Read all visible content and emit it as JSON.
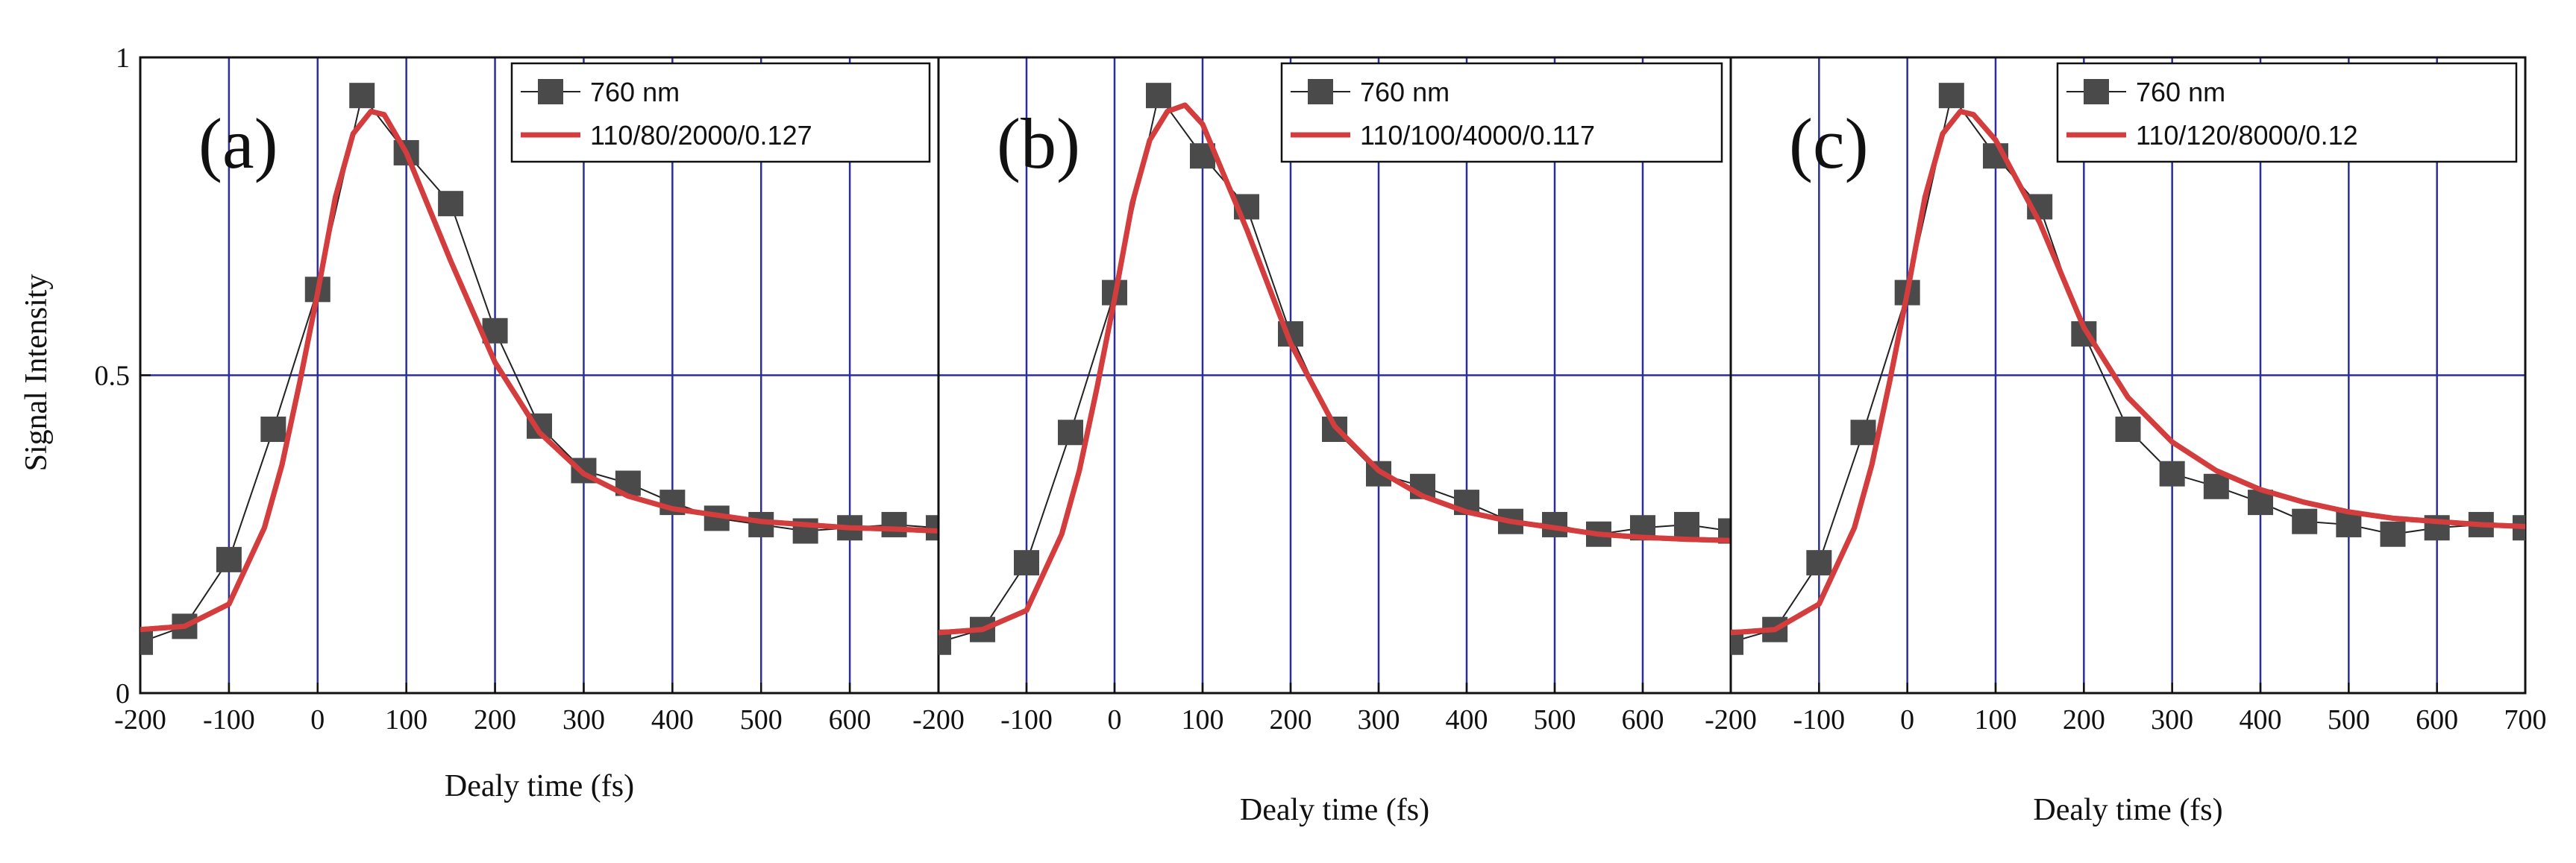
{
  "figure": {
    "ylabel": "Signal Intensity",
    "xlabel": "Dealy time (fs)"
  },
  "chart_data": [
    {
      "type": "line",
      "panel_label": "(a)",
      "xlabel": "Dealy time (fs)",
      "ylabel": "Signal Intensity",
      "xlim": [
        -200,
        700
      ],
      "ylim": [
        0,
        1
      ],
      "x_ticks": [
        -200,
        -100,
        0,
        100,
        200,
        300,
        400,
        500,
        600
      ],
      "y_ticks": [
        0,
        0.5,
        1
      ],
      "y_tick_labels": [
        "0",
        "0.5",
        "1"
      ],
      "grid": "vertical lines every 100 fs, horizontal line at 0.5",
      "legend": "top-right",
      "series": [
        {
          "name": "760 nm",
          "style": "squares-with-line",
          "color": "#4a4a4a",
          "x": [
            -200,
            -150,
            -100,
            -50,
            0,
            50,
            100,
            150,
            200,
            250,
            300,
            350,
            400,
            450,
            500,
            550,
            600,
            650,
            700
          ],
          "values": [
            0.08,
            0.105,
            0.21,
            0.415,
            0.635,
            0.94,
            0.85,
            0.77,
            0.57,
            0.42,
            0.35,
            0.33,
            0.3,
            0.275,
            0.265,
            0.255,
            0.26,
            0.265,
            0.26
          ]
        },
        {
          "name": "110/80/2000/0.127",
          "style": "line",
          "color": "#d43d3d",
          "x": [
            -200,
            -150,
            -100,
            -60,
            -40,
            -20,
            0,
            20,
            40,
            60,
            75,
            100,
            150,
            200,
            250,
            300,
            350,
            400,
            450,
            500,
            550,
            600,
            650,
            700
          ],
          "values": [
            0.1,
            0.105,
            0.14,
            0.26,
            0.36,
            0.49,
            0.63,
            0.78,
            0.88,
            0.915,
            0.91,
            0.85,
            0.68,
            0.52,
            0.41,
            0.345,
            0.31,
            0.29,
            0.28,
            0.27,
            0.265,
            0.26,
            0.258,
            0.255
          ]
        }
      ]
    },
    {
      "type": "line",
      "panel_label": "(b)",
      "xlabel": "Dealy time (fs)",
      "ylabel": "",
      "xlim": [
        -200,
        700
      ],
      "ylim": [
        0,
        1
      ],
      "x_ticks": [
        -200,
        -100,
        0,
        100,
        200,
        300,
        400,
        500,
        600
      ],
      "grid": "vertical lines every 100 fs, horizontal line at 0.5",
      "legend": "top-right",
      "series": [
        {
          "name": "760 nm",
          "style": "squares-with-line",
          "color": "#4a4a4a",
          "x": [
            -200,
            -150,
            -100,
            -50,
            0,
            50,
            100,
            150,
            200,
            250,
            300,
            350,
            400,
            450,
            500,
            550,
            600,
            650,
            700
          ],
          "values": [
            0.08,
            0.1,
            0.205,
            0.41,
            0.63,
            0.94,
            0.845,
            0.765,
            0.565,
            0.415,
            0.345,
            0.325,
            0.3,
            0.27,
            0.265,
            0.25,
            0.26,
            0.265,
            0.255
          ]
        },
        {
          "name": "110/100/4000/0.117",
          "style": "line",
          "color": "#d43d3d",
          "x": [
            -200,
            -150,
            -100,
            -60,
            -40,
            -20,
            0,
            20,
            40,
            60,
            80,
            100,
            150,
            200,
            250,
            300,
            350,
            400,
            450,
            500,
            550,
            600,
            650,
            700
          ],
          "values": [
            0.095,
            0.1,
            0.13,
            0.25,
            0.35,
            0.48,
            0.62,
            0.77,
            0.87,
            0.915,
            0.925,
            0.895,
            0.73,
            0.55,
            0.42,
            0.35,
            0.31,
            0.285,
            0.27,
            0.26,
            0.25,
            0.245,
            0.242,
            0.24
          ]
        }
      ]
    },
    {
      "type": "line",
      "panel_label": "(c)",
      "xlabel": "Dealy time (fs)",
      "ylabel": "",
      "xlim": [
        -200,
        700
      ],
      "ylim": [
        0,
        1
      ],
      "x_ticks": [
        -200,
        -100,
        0,
        100,
        200,
        300,
        400,
        500,
        600,
        700
      ],
      "grid": "vertical lines every 100 fs, horizontal line at 0.5",
      "legend": "top-right",
      "series": [
        {
          "name": "760 nm",
          "style": "squares-with-line",
          "color": "#4a4a4a",
          "x": [
            -200,
            -150,
            -100,
            -50,
            0,
            50,
            100,
            150,
            200,
            250,
            300,
            350,
            400,
            450,
            500,
            550,
            600,
            650,
            700
          ],
          "values": [
            0.08,
            0.1,
            0.205,
            0.41,
            0.63,
            0.94,
            0.845,
            0.765,
            0.565,
            0.415,
            0.345,
            0.325,
            0.3,
            0.27,
            0.265,
            0.25,
            0.26,
            0.265,
            0.26
          ]
        },
        {
          "name": "110/120/8000/0.12",
          "style": "line",
          "color": "#d43d3d",
          "x": [
            -200,
            -150,
            -100,
            -60,
            -40,
            -20,
            0,
            20,
            40,
            60,
            75,
            100,
            150,
            200,
            250,
            300,
            350,
            400,
            450,
            500,
            550,
            600,
            650,
            700
          ],
          "values": [
            0.095,
            0.1,
            0.14,
            0.26,
            0.36,
            0.49,
            0.63,
            0.78,
            0.88,
            0.915,
            0.91,
            0.87,
            0.74,
            0.575,
            0.465,
            0.395,
            0.35,
            0.32,
            0.3,
            0.285,
            0.275,
            0.27,
            0.265,
            0.262
          ]
        }
      ]
    }
  ]
}
